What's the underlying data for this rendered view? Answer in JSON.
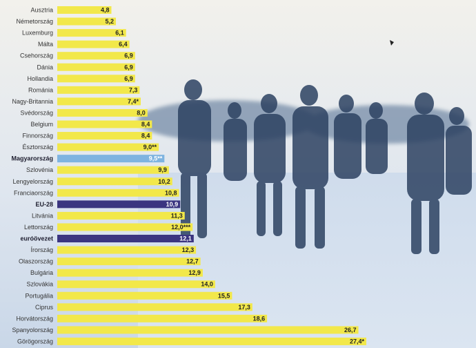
{
  "chart_data": {
    "type": "bar",
    "orientation": "horizontal",
    "categories": [
      "Ausztria",
      "Németország",
      "Luxemburg",
      "Málta",
      "Csehország",
      "Dánia",
      "Hollandia",
      "Románia",
      "Nagy-Britannia",
      "Svédország",
      "Belgium",
      "Finnország",
      "Észtország",
      "Magyarország",
      "Szlovénia",
      "Lengyelország",
      "Franciaország",
      "EU-28",
      "Litvánia",
      "Lettország",
      "euróövezet",
      "Írország",
      "Olaszország",
      "Bulgária",
      "Szlovákia",
      "Portugália",
      "Ciprus",
      "Horvátország",
      "Spanyolország",
      "Görögország"
    ],
    "values": [
      4.8,
      5.2,
      6.1,
      6.4,
      6.9,
      6.9,
      6.9,
      7.3,
      7.4,
      8.0,
      8.4,
      8.4,
      9.0,
      9.5,
      9.9,
      10.2,
      10.8,
      10.9,
      11.3,
      12.0,
      12.1,
      12.3,
      12.7,
      12.9,
      14.0,
      15.5,
      17.3,
      18.6,
      26.7,
      27.4
    ],
    "value_labels": [
      "4,8",
      "5,2",
      "6,1",
      "6,4",
      "6,9",
      "6,9",
      "6,9",
      "7,3",
      "7,4*",
      "8,0",
      "8,4",
      "8,4",
      "9,0**",
      "9,5**",
      "9,9",
      "10,2",
      "10,8",
      "10,9",
      "11,3",
      "12,0***",
      "12,1",
      "12,3",
      "12,7",
      "12,9",
      "14,0",
      "15,5",
      "17,3",
      "18,6",
      "26,7",
      "27,4*"
    ],
    "highlight": {
      "Magyarország": "#7fb4e0",
      "EU-28": "#3b3580",
      "euróövezet": "#3b3580"
    },
    "bar_color": "#f2e84a",
    "grid": false,
    "legend": "none",
    "title": "",
    "xlabel": "",
    "ylabel": ""
  }
}
